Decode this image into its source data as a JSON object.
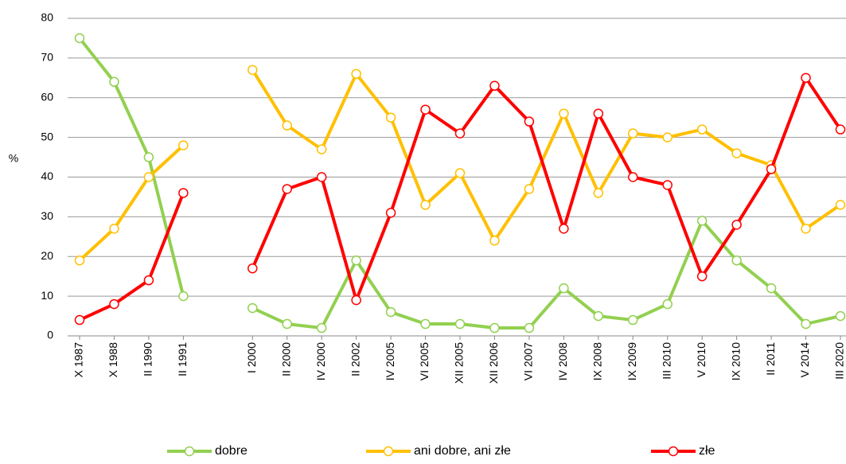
{
  "chart_data": {
    "type": "line",
    "y_label": "%",
    "categories": [
      "X 1987",
      "X 1988",
      "II 1990",
      "II 1991",
      null,
      "I 2000",
      "II 2000",
      "IV 2000",
      "II 2002",
      "IV 2005",
      "VI 2005",
      "XII 2005",
      "XII 2006",
      "VI 2007",
      "IV 2008",
      "IX 2008",
      "IX 2009",
      "III 2010",
      "V 2010",
      "IX 2010",
      "II 2011",
      "V 2014",
      "III 2020"
    ],
    "series": [
      {
        "name": "dobre",
        "color": "#92d050",
        "values": [
          75,
          64,
          45,
          10,
          null,
          7,
          3,
          2,
          19,
          6,
          3,
          3,
          2,
          2,
          12,
          5,
          4,
          8,
          29,
          19,
          12,
          3,
          5
        ]
      },
      {
        "name": "ani dobre, ani złe",
        "color": "#ffc000",
        "values": [
          19,
          27,
          40,
          48,
          null,
          67,
          53,
          47,
          66,
          55,
          33,
          41,
          24,
          37,
          56,
          36,
          51,
          50,
          52,
          46,
          43,
          27,
          33
        ]
      },
      {
        "name": "złe",
        "color": "#ff0000",
        "values": [
          4,
          8,
          14,
          36,
          null,
          17,
          37,
          40,
          9,
          31,
          57,
          51,
          63,
          54,
          27,
          56,
          40,
          38,
          15,
          28,
          42,
          65,
          52
        ]
      }
    ],
    "ylim": [
      0,
      80
    ],
    "yticks": [
      0,
      10,
      20,
      30,
      40,
      50,
      60,
      70,
      80
    ],
    "grid": true
  }
}
